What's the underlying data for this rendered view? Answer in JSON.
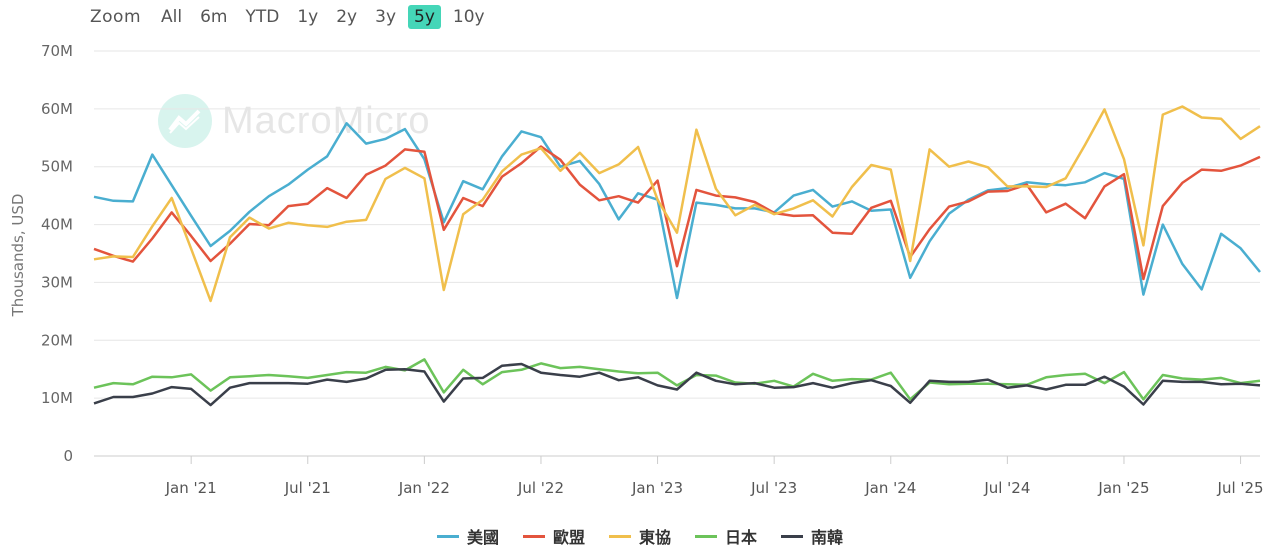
{
  "zoom": {
    "label": "Zoom",
    "options": [
      "All",
      "6m",
      "YTD",
      "1y",
      "2y",
      "3y",
      "5y",
      "10y"
    ],
    "active": "5y",
    "accent_color": "#45d6b8"
  },
  "watermark": {
    "text": "MacroMicro"
  },
  "chart_data": {
    "type": "line",
    "ylabel": "Thousands, USD",
    "ylim": [
      0,
      70000000
    ],
    "yticks": [
      0,
      10000000,
      20000000,
      30000000,
      40000000,
      50000000,
      60000000,
      70000000
    ],
    "ytick_labels": [
      "0",
      "10M",
      "20M",
      "30M",
      "40M",
      "50M",
      "60M",
      "70M"
    ],
    "x_start": "2020-08",
    "x_end": "2025-08",
    "xticks": [
      "2021-01",
      "2021-07",
      "2022-01",
      "2022-07",
      "2023-01",
      "2023-07",
      "2024-01",
      "2024-07",
      "2025-01",
      "2025-07"
    ],
    "xtick_labels": [
      "Jan '21",
      "Jul '21",
      "Jan '22",
      "Jul '22",
      "Jan '23",
      "Jul '23",
      "Jan '24",
      "Jul '24",
      "Jan '25",
      "Jul '25"
    ],
    "grid": true,
    "legend_position": "bottom",
    "series": [
      {
        "name": "美國",
        "color": "#4aaed0",
        "values": [
          44.8,
          44.1,
          44.0,
          52.1,
          46.8,
          41.5,
          36.3,
          38.9,
          42.2,
          44.9,
          46.9,
          49.5,
          51.8,
          57.5,
          54.0,
          54.8,
          56.5,
          51.3,
          40.4,
          47.5,
          46.1,
          51.8,
          56.1,
          55.1,
          50.0,
          51.0,
          47.0,
          40.9,
          45.4,
          44.3,
          27.3,
          43.8,
          43.4,
          42.8,
          42.8,
          42.1,
          45.0,
          46.0,
          43.1,
          44.0,
          42.4,
          42.6,
          30.8,
          37.1,
          41.9,
          44.3,
          45.9,
          46.3,
          47.3,
          47.0,
          46.8,
          47.3,
          48.9,
          47.9,
          27.9,
          40.0,
          33.2,
          28.8,
          38.4,
          35.9,
          31.8
        ]
      },
      {
        "name": "歐盟",
        "color": "#e3543d",
        "values": [
          35.8,
          34.6,
          33.6,
          37.6,
          42.1,
          38.0,
          33.7,
          36.7,
          40.1,
          39.9,
          43.2,
          43.6,
          46.3,
          44.6,
          48.6,
          50.2,
          53.0,
          52.6,
          39.1,
          44.6,
          43.2,
          48.3,
          50.6,
          53.5,
          51.2,
          46.9,
          44.2,
          44.9,
          43.8,
          47.6,
          32.8,
          46.0,
          45.0,
          44.7,
          43.9,
          42.0,
          41.5,
          41.6,
          38.6,
          38.4,
          42.9,
          44.1,
          34.4,
          39.2,
          43.1,
          44.0,
          45.7,
          45.8,
          46.9,
          42.1,
          43.6,
          41.1,
          46.6,
          48.7,
          30.6,
          43.2,
          47.2,
          49.5,
          49.3,
          50.2,
          51.7
        ]
      },
      {
        "name": "東協",
        "color": "#f0bf4c",
        "values": [
          34.0,
          34.5,
          34.4,
          39.7,
          44.6,
          35.8,
          26.8,
          37.8,
          41.2,
          39.3,
          40.3,
          39.9,
          39.6,
          40.5,
          40.8,
          47.9,
          49.8,
          48.0,
          28.7,
          41.8,
          44.3,
          49.2,
          52.1,
          53.2,
          49.3,
          52.4,
          48.9,
          50.4,
          53.4,
          44.3,
          38.6,
          56.4,
          46.2,
          41.6,
          43.4,
          41.8,
          42.8,
          44.2,
          41.4,
          46.5,
          50.3,
          49.5,
          33.7,
          53.0,
          50.0,
          50.9,
          49.9,
          46.6,
          46.6,
          46.5,
          48.0,
          53.8,
          59.9,
          51.3,
          36.4,
          59.0,
          60.4,
          58.5,
          58.3,
          54.8,
          57.0
        ]
      },
      {
        "name": "日本",
        "color": "#6cc35a",
        "values": [
          11.8,
          12.6,
          12.4,
          13.7,
          13.6,
          14.1,
          11.3,
          13.6,
          13.8,
          14.0,
          13.8,
          13.5,
          14.0,
          14.5,
          14.4,
          15.4,
          14.8,
          16.7,
          11.0,
          14.9,
          12.4,
          14.5,
          14.9,
          16.0,
          15.2,
          15.4,
          15.0,
          14.6,
          14.3,
          14.4,
          12.2,
          14.0,
          13.9,
          12.7,
          12.5,
          13.0,
          12.0,
          14.2,
          13.0,
          13.3,
          13.2,
          14.4,
          9.8,
          12.7,
          12.4,
          12.5,
          12.5,
          12.4,
          12.3,
          13.6,
          14.0,
          14.2,
          12.6,
          14.5,
          9.8,
          14.0,
          13.4,
          13.2,
          13.5,
          12.6,
          13.0
        ]
      },
      {
        "name": "南韓",
        "color": "#3a3f4a",
        "values": [
          9.1,
          10.2,
          10.2,
          10.8,
          11.9,
          11.6,
          8.8,
          11.8,
          12.6,
          12.6,
          12.6,
          12.5,
          13.2,
          12.8,
          13.4,
          14.9,
          15.0,
          14.6,
          9.4,
          13.4,
          13.5,
          15.6,
          15.9,
          14.4,
          14.0,
          13.7,
          14.4,
          13.1,
          13.6,
          12.2,
          11.5,
          14.4,
          13.0,
          12.4,
          12.6,
          11.8,
          11.9,
          12.6,
          11.8,
          12.6,
          13.1,
          12.1,
          9.2,
          13.0,
          12.8,
          12.8,
          13.2,
          11.8,
          12.2,
          11.5,
          12.3,
          12.3,
          13.7,
          12.0,
          8.9,
          13.0,
          12.8,
          12.8,
          12.4,
          12.5,
          12.2
        ]
      }
    ]
  }
}
